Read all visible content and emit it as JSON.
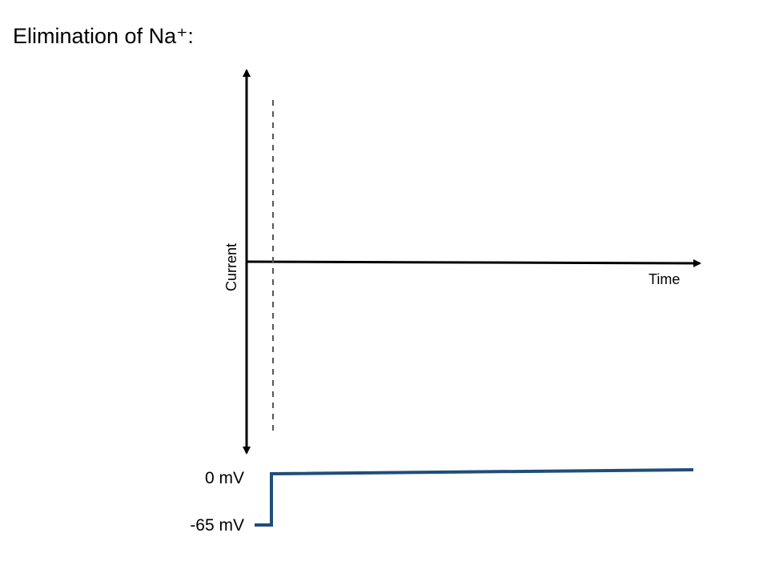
{
  "title": "Elimination of Na⁺:",
  "diagram": {
    "y_axis_label": "Current",
    "x_axis_label": "Time",
    "voltage_labels": {
      "high": "0 mV",
      "low": "-65 mV"
    },
    "colors": {
      "axes": "#000000",
      "voltage_trace": "#1f4e79",
      "dashed_marker": "#555555"
    }
  }
}
